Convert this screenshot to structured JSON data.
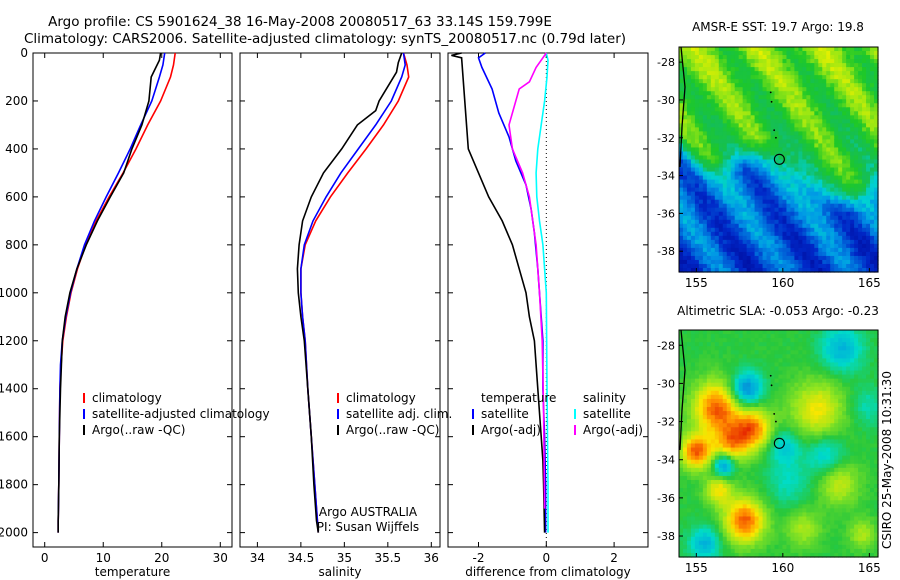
{
  "title_line1": "Argo profile: CS 5901624_38 16-May-2008 20080517_63 33.14S 159.799E",
  "title_line2": "Climatology: CARS2006. Satellite-adjusted climatology: synTS_20080517.nc (0.79d later)",
  "side_text": "CSIRO 25-May-2008 10:31:30",
  "colors": {
    "climatology": "#ff0000",
    "satellite": "#0000ff",
    "argo": "#000000",
    "magenta": "#ff00ff",
    "cyan": "#00ffff"
  },
  "chart_data": [
    {
      "type": "line",
      "xlabel": "temperature",
      "ylabel": "",
      "xlim": [
        -2,
        32
      ],
      "ylim": [
        2060,
        0
      ],
      "xticks": [
        0,
        10,
        20,
        30
      ],
      "yticks": [
        0,
        200,
        400,
        600,
        800,
        1000,
        1200,
        1400,
        1600,
        1800,
        2000
      ],
      "legend": [
        "climatology",
        "satellite-adjusted climatology",
        "Argo(..raw -QC)"
      ],
      "series": [
        {
          "name": "climatology",
          "color": "climatology",
          "x": [
            22.3,
            22.0,
            21.5,
            19.8,
            17.6,
            15.6,
            13.4,
            11.0,
            8.8,
            7.0,
            5.6,
            4.5,
            3.7,
            3.1,
            2.8,
            2.6,
            2.5,
            2.4,
            2.3,
            2.3
          ],
          "y": [
            0,
            50,
            100,
            200,
            300,
            400,
            500,
            600,
            700,
            800,
            900,
            1000,
            1100,
            1200,
            1300,
            1400,
            1600,
            1800,
            1950,
            2000
          ]
        },
        {
          "name": "satellite-adjusted climatology",
          "color": "satellite",
          "x": [
            20.5,
            20.2,
            19.6,
            18.3,
            16.4,
            14.6,
            12.6,
            10.5,
            8.5,
            6.8,
            5.5,
            4.4,
            3.6,
            3.0,
            2.7,
            2.6,
            2.5,
            2.4,
            2.3,
            2.3
          ],
          "y": [
            0,
            50,
            100,
            200,
            300,
            400,
            500,
            600,
            700,
            800,
            900,
            1000,
            1100,
            1200,
            1300,
            1400,
            1600,
            1800,
            1950,
            2000
          ]
        },
        {
          "name": "Argo(..raw -QC)",
          "color": "argo",
          "x": [
            19.8,
            19.6,
            19.0,
            18.2,
            17.8,
            16.6,
            14.9,
            13.5,
            11.2,
            9.0,
            7.1,
            5.5,
            4.3,
            3.5,
            3.0,
            2.7,
            2.5,
            2.4,
            2.3,
            2.3
          ],
          "y": [
            0,
            30,
            60,
            100,
            200,
            300,
            400,
            500,
            600,
            700,
            800,
            900,
            1000,
            1100,
            1200,
            1400,
            1600,
            1800,
            1950,
            2000
          ]
        }
      ]
    },
    {
      "type": "line",
      "xlabel": "salinity",
      "ylabel": "",
      "xlim": [
        33.8,
        36.1
      ],
      "ylim": [
        2060,
        0
      ],
      "xticks": [
        34,
        34.5,
        35,
        35.5,
        36
      ],
      "legend": [
        "climatology",
        "satellite adj. clim.",
        "Argo(..raw -QC)"
      ],
      "annotation": [
        "Argo AUSTRALIA",
        "PI: Susan Wijffels"
      ],
      "series": [
        {
          "name": "climatology",
          "color": "climatology",
          "x": [
            35.68,
            35.72,
            35.74,
            35.62,
            35.45,
            35.25,
            35.04,
            34.84,
            34.67,
            34.55,
            34.5,
            34.5,
            34.52,
            34.55,
            34.58,
            34.62,
            34.66,
            34.69,
            34.7
          ],
          "y": [
            0,
            50,
            100,
            200,
            300,
            400,
            500,
            600,
            700,
            800,
            900,
            1000,
            1100,
            1200,
            1400,
            1600,
            1800,
            1950,
            2000
          ]
        },
        {
          "name": "satellite adj. clim.",
          "color": "satellite",
          "x": [
            35.68,
            35.7,
            35.66,
            35.54,
            35.36,
            35.16,
            34.96,
            34.79,
            34.64,
            34.54,
            34.5,
            34.5,
            34.52,
            34.55,
            34.58,
            34.62,
            34.66,
            34.69,
            34.7
          ],
          "y": [
            0,
            50,
            100,
            200,
            300,
            400,
            500,
            600,
            700,
            800,
            900,
            1000,
            1100,
            1200,
            1400,
            1600,
            1800,
            1950,
            2000
          ]
        },
        {
          "name": "Argo(..raw -QC)",
          "color": "argo",
          "x": [
            35.66,
            35.62,
            35.6,
            35.4,
            35.36,
            35.15,
            34.97,
            34.76,
            34.62,
            34.52,
            34.48,
            34.46,
            34.47,
            34.5,
            34.54,
            34.58,
            34.62,
            34.65,
            34.68,
            34.7
          ],
          "y": [
            0,
            40,
            80,
            200,
            240,
            300,
            400,
            500,
            600,
            700,
            800,
            900,
            1000,
            1100,
            1200,
            1400,
            1600,
            1800,
            1950,
            2000
          ]
        }
      ]
    },
    {
      "type": "line",
      "xlabel": "difference from climatology",
      "ylabel": "",
      "xlim": [
        -2.9,
        3.0
      ],
      "ylim": [
        2060,
        0
      ],
      "xticks": [
        -2,
        0,
        2
      ],
      "legend_left_title": "temperature",
      "legend_left": [
        "satellite",
        "Argo(-adj)"
      ],
      "legend_right_title": "salinity",
      "legend_right": [
        "satellite",
        "Argo(-adj)"
      ],
      "series": [
        {
          "name": "temperature satellite",
          "color": "satellite",
          "x": [
            -1.8,
            -2.0,
            -1.9,
            -1.6,
            -1.4,
            -1.1,
            -0.9,
            -0.6,
            -0.45,
            -0.35,
            -0.25,
            -0.2,
            -0.15,
            -0.1,
            -0.1,
            -0.05,
            -0.02,
            -0.02
          ],
          "y": [
            0,
            20,
            60,
            150,
            250,
            350,
            450,
            550,
            650,
            750,
            900,
            1000,
            1100,
            1200,
            1400,
            1600,
            1800,
            2000
          ]
        },
        {
          "name": "temperature Argo(-adj)",
          "color": "argo",
          "x": [
            -2.5,
            -2.8,
            -2.5,
            -2.3,
            -2.0,
            -1.7,
            -1.3,
            -1.0,
            -0.8,
            -0.6,
            -0.5,
            -0.35,
            -0.25,
            -0.15,
            -0.1,
            -0.08,
            -0.05
          ],
          "y": [
            0,
            10,
            20,
            400,
            500,
            600,
            700,
            800,
            900,
            1000,
            1100,
            1200,
            1400,
            1600,
            1700,
            1800,
            2000
          ]
        },
        {
          "name": "salinity satellite",
          "color": "cyan",
          "x": [
            0.0,
            0.05,
            0.02,
            -0.05,
            -0.15,
            -0.25,
            -0.3,
            -0.28,
            -0.2,
            -0.1,
            -0.05,
            0.0,
            0.02,
            0.05,
            0.05
          ],
          "y": [
            0,
            30,
            100,
            200,
            300,
            400,
            500,
            600,
            700,
            800,
            900,
            1000,
            1400,
            1800,
            2000
          ]
        },
        {
          "name": "salinity Argo(-adj)",
          "color": "magenta",
          "x": [
            0.0,
            -0.3,
            -0.5,
            -0.8,
            -0.9,
            -1.1,
            -1.0,
            -0.7,
            -0.5,
            -0.3,
            -0.2,
            -0.12,
            -0.08,
            -0.05
          ],
          "y": [
            0,
            60,
            120,
            150,
            200,
            300,
            400,
            500,
            600,
            800,
            1000,
            1200,
            1500,
            1900
          ]
        }
      ]
    },
    {
      "type": "heatmap",
      "title": "AMSR-E SST: 19.7 Argo: 19.8",
      "xlim": [
        154,
        165.5
      ],
      "ylim": [
        -39.1,
        -27.2
      ],
      "xticks": [
        155,
        160,
        165
      ],
      "yticks": [
        -28,
        -30,
        -32,
        -34,
        -36,
        -38
      ],
      "marker": {
        "lon": 159.8,
        "lat": -33.14
      }
    },
    {
      "type": "heatmap",
      "title": "Altimetric SLA: -0.053 Argo: -0.23",
      "xlim": [
        154,
        165.5
      ],
      "ylim": [
        -39.1,
        -27.2
      ],
      "xticks": [
        155,
        160,
        165
      ],
      "yticks": [
        -28,
        -30,
        -32,
        -34,
        -36,
        -38
      ],
      "marker": {
        "lon": 159.8,
        "lat": -33.14
      }
    }
  ]
}
